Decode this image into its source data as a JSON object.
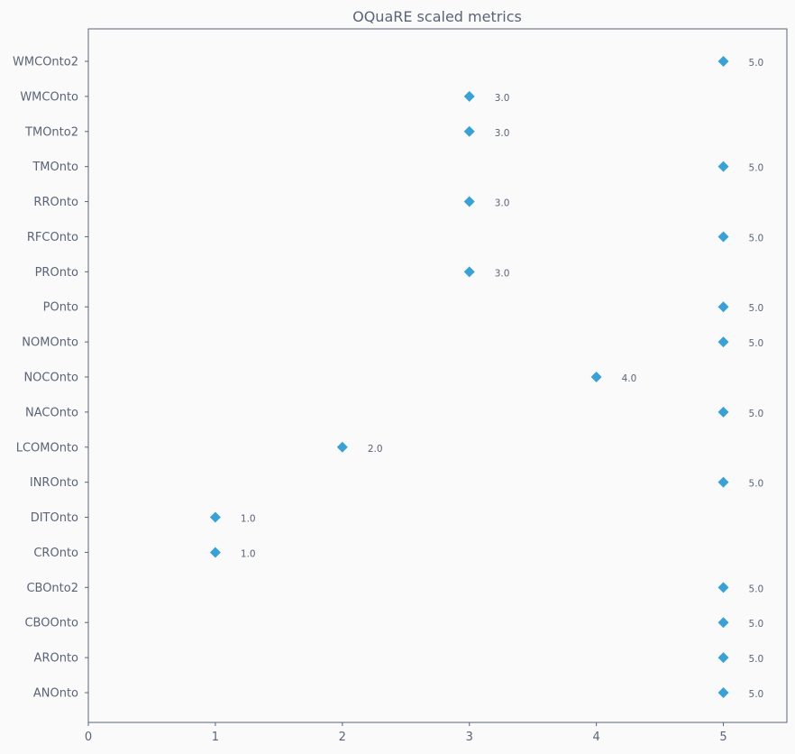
{
  "chart_data": {
    "type": "scatter",
    "title": "OQuaRE scaled metrics",
    "xlabel": "",
    "ylabel": "",
    "xlim": [
      0,
      5.5
    ],
    "xticks": [
      "0",
      "1",
      "2",
      "3",
      "4",
      "5"
    ],
    "grid": false,
    "marker": "diamond",
    "marker_color": "#3aa1d6",
    "categories": [
      "ANOnto",
      "AROnto",
      "CBOOnto",
      "CBOnto2",
      "CROnto",
      "DITOnto",
      "INROnto",
      "LCOMOnto",
      "NACOnto",
      "NOCOnto",
      "NOMOnto",
      "POnto",
      "PROnto",
      "RFCOnto",
      "RROnto",
      "TMOnto",
      "TMOnto2",
      "WMCOnto",
      "WMCOnto2"
    ],
    "values": [
      5,
      5,
      5,
      5,
      1,
      1,
      5,
      2,
      5,
      4,
      5,
      5,
      3,
      5,
      3,
      5,
      3,
      3,
      5
    ],
    "labels": [
      "5.0",
      "5.0",
      "5.0",
      "5.0",
      "1.0",
      "1.0",
      "5.0",
      "2.0",
      "5.0",
      "4.0",
      "5.0",
      "5.0",
      "3.0",
      "5.0",
      "3.0",
      "5.0",
      "3.0",
      "3.0",
      "5.0"
    ]
  }
}
